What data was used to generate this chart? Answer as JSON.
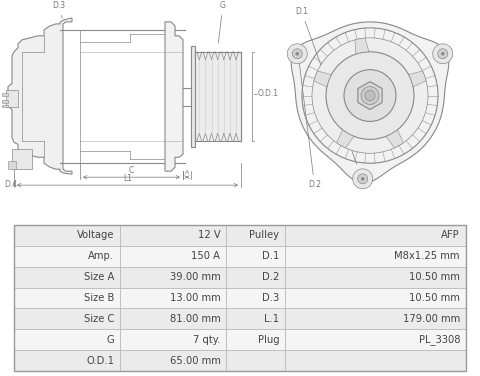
{
  "table_rows": [
    [
      "Voltage",
      "12 V",
      "Pulley",
      "AFP"
    ],
    [
      "Amp.",
      "150 A",
      "D.1",
      "M8x1.25 mm"
    ],
    [
      "Size A",
      "39.00 mm",
      "D.2",
      "10.50 mm"
    ],
    [
      "Size B",
      "13.00 mm",
      "D.3",
      "10.50 mm"
    ],
    [
      "Size C",
      "81.00 mm",
      "L.1",
      "179.00 mm"
    ],
    [
      "G",
      "7 qty.",
      "Plug",
      "PL_3308"
    ],
    [
      "O.D.1",
      "65.00 mm",
      "",
      ""
    ]
  ],
  "row_bg_1": "#ebebeb",
  "row_bg_2": "#f5f5f5",
  "border_color": "#bbbbbb",
  "text_color": "#444444",
  "font_size": 7.2,
  "bg_color": "#ffffff",
  "line_color": "#888888",
  "dim_color": "#777777"
}
